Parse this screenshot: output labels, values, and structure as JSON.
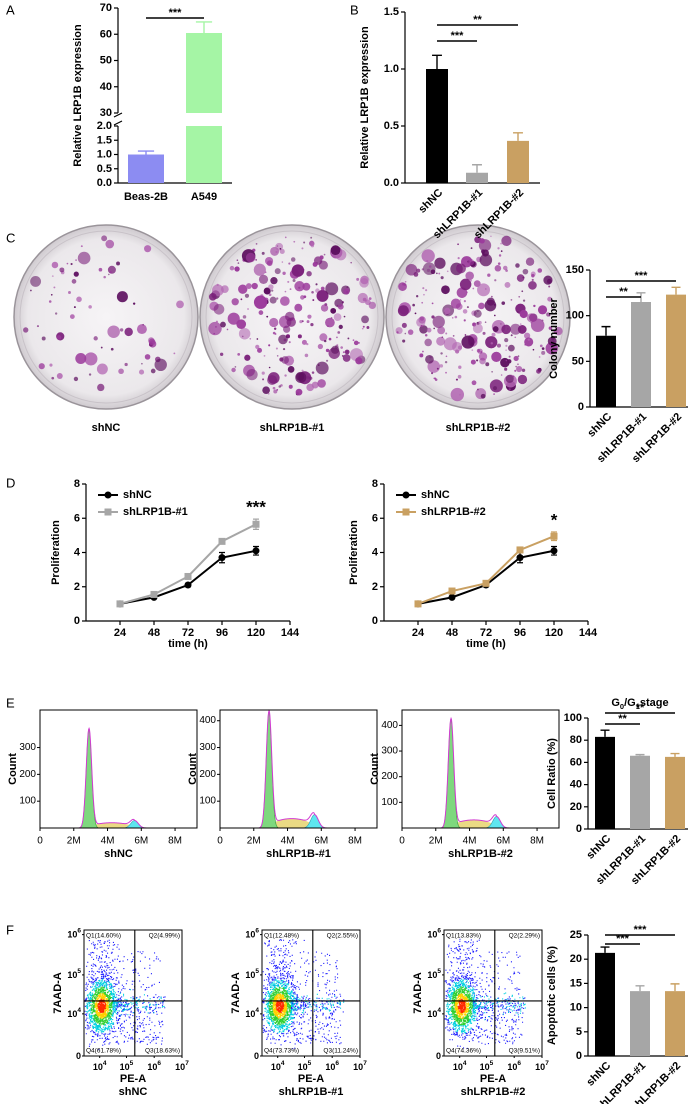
{
  "panels": [
    "A",
    "B",
    "C",
    "D",
    "E",
    "F"
  ],
  "plates": [
    "shNC",
    "shLRP1B-#1",
    "shLRP1B-#2"
  ],
  "chart_data": [
    {
      "type": "bar",
      "ylabel": "Relative LRP1B expression",
      "categories": [
        "Beas-2B",
        "A549"
      ],
      "values": [
        1.0,
        60.5
      ],
      "errors": [
        0.12,
        4.2
      ],
      "colors": [
        "#8c8cf2",
        "#a5f5a5"
      ],
      "ylim": [
        0,
        70
      ],
      "ybreak": [
        2,
        30
      ],
      "yticks": [
        {
          "value": 0,
          "label": "0.0"
        },
        0.5,
        {
          "value": 1,
          "label": "1.0"
        },
        1.5,
        {
          "value": 2,
          "label": "2.0"
        },
        30,
        40,
        50,
        60,
        70
      ],
      "significance": [
        {
          "label": "***",
          "between": [
            0,
            1
          ]
        }
      ]
    },
    {
      "type": "bar",
      "ylabel": "Relative LRP1B expression",
      "categories": [
        "shNC",
        "shLRP1B-#1",
        "shLRP1B-#2"
      ],
      "values": [
        1.0,
        0.09,
        0.37
      ],
      "errors": [
        0.12,
        0.07,
        0.07
      ],
      "colors": [
        "#000000",
        "#a6a6a6",
        "#c9a062"
      ],
      "ylim": [
        0,
        1.5
      ],
      "yticks": [
        {
          "value": 0,
          "label": "0.0"
        },
        0.5,
        {
          "value": 1,
          "label": "1.0"
        },
        1.5
      ],
      "significance": [
        {
          "label": "***",
          "between": [
            0,
            1
          ]
        },
        {
          "label": "**",
          "between": [
            0,
            2
          ]
        }
      ]
    },
    {
      "type": "bar",
      "ylabel": "Colony number",
      "categories": [
        "shNC",
        "shLRP1B-#1",
        "shLRP1B-#2"
      ],
      "values": [
        78,
        115,
        123
      ],
      "errors": [
        10,
        10,
        8
      ],
      "colors": [
        "#000000",
        "#a6a6a6",
        "#c9a062"
      ],
      "ylim": [
        0,
        150
      ],
      "yticks": [
        0,
        50,
        100,
        150
      ],
      "significance": [
        {
          "label": "**",
          "between": [
            0,
            1
          ]
        },
        {
          "label": "***",
          "between": [
            0,
            2
          ]
        }
      ]
    },
    {
      "type": "line",
      "ylabel": "Proliferation",
      "xlabel": "time (h)",
      "x": [
        24,
        48,
        72,
        96,
        120
      ],
      "xlim": [
        0,
        144
      ],
      "xticks": [
        24,
        48,
        72,
        96,
        120,
        144
      ],
      "ylim": [
        0,
        8
      ],
      "yticks": [
        0,
        2,
        4,
        6,
        8
      ],
      "series": [
        {
          "name": "shNC",
          "color": "#000000",
          "marker": "circle",
          "values": [
            1.0,
            1.38,
            2.1,
            3.7,
            4.1
          ],
          "errors": [
            0.05,
            0.06,
            0.1,
            0.3,
            0.25
          ]
        },
        {
          "name": "shLRP1B-#1",
          "color": "#a6a6a6",
          "marker": "square",
          "values": [
            1.0,
            1.55,
            2.6,
            4.65,
            5.65
          ],
          "errors": [
            0.05,
            0.06,
            0.1,
            0.15,
            0.3
          ]
        }
      ],
      "annotation": {
        "label": "***",
        "x": 120
      }
    },
    {
      "type": "line",
      "ylabel": "Proliferation",
      "xlabel": "time (h)",
      "x": [
        24,
        48,
        72,
        96,
        120
      ],
      "xlim": [
        0,
        144
      ],
      "xticks": [
        24,
        48,
        72,
        96,
        120,
        144
      ],
      "ylim": [
        0,
        8
      ],
      "yticks": [
        0,
        2,
        4,
        6,
        8
      ],
      "series": [
        {
          "name": "shNC",
          "color": "#000000",
          "marker": "circle",
          "values": [
            1.0,
            1.38,
            2.1,
            3.7,
            4.1
          ],
          "errors": [
            0.05,
            0.06,
            0.1,
            0.3,
            0.25
          ]
        },
        {
          "name": "shLRP1B-#2",
          "color": "#c9a062",
          "marker": "square",
          "values": [
            1.0,
            1.75,
            2.2,
            4.15,
            4.95
          ],
          "errors": [
            0.05,
            0.08,
            0.1,
            0.12,
            0.25
          ]
        }
      ],
      "annotation": {
        "label": "*",
        "x": 120
      }
    },
    {
      "type": "flow-histogram",
      "ylabel": "Count",
      "xlabel": "shNC",
      "xlim": [
        0,
        9300000
      ],
      "xticks": [
        0,
        {
          "value": 2000000,
          "label": "2M"
        },
        {
          "value": 4000000,
          "label": "4M"
        },
        {
          "value": 6000000,
          "label": "6M"
        },
        {
          "value": 8000000,
          "label": "8M"
        }
      ],
      "ylim": [
        0,
        440
      ],
      "yticks": [
        100,
        200,
        300
      ],
      "peaks": [
        [
          2900000,
          370
        ],
        [
          5600000,
          28
        ]
      ],
      "colors": [
        "#7ed87e",
        "#e6d36e",
        "#5ee6ef"
      ],
      "line_color": "#d23cd2"
    },
    {
      "type": "flow-histogram",
      "ylabel": "Count",
      "xlabel": "shLRP1B-#1",
      "xlim": [
        0,
        9300000
      ],
      "xticks": [
        0,
        {
          "value": 2000000,
          "label": "2M"
        },
        {
          "value": 4000000,
          "label": "4M"
        },
        {
          "value": 6000000,
          "label": "6M"
        },
        {
          "value": 8000000,
          "label": "8M"
        }
      ],
      "ylim": [
        0,
        440
      ],
      "yticks": [
        100,
        200,
        300,
        400
      ],
      "peaks": [
        [
          2900000,
          435
        ],
        [
          5600000,
          50
        ]
      ],
      "colors": [
        "#7ed87e",
        "#e6d36e",
        "#5ee6ef"
      ],
      "line_color": "#d23cd2"
    },
    {
      "type": "flow-histogram",
      "ylabel": "Count",
      "xlabel": "shLRP1B-#2",
      "xlim": [
        0,
        9300000
      ],
      "xticks": [
        0,
        {
          "value": 2000000,
          "label": "2M"
        },
        {
          "value": 4000000,
          "label": "4M"
        },
        {
          "value": 6000000,
          "label": "6M"
        },
        {
          "value": 8000000,
          "label": "8M"
        }
      ],
      "ylim": [
        0,
        460
      ],
      "yticks": [
        100,
        200,
        300,
        400
      ],
      "peaks": [
        [
          2900000,
          425
        ],
        [
          5600000,
          45
        ]
      ],
      "colors": [
        "#7ed87e",
        "#e6d36e",
        "#5ee6ef"
      ],
      "line_color": "#d23cd2"
    },
    {
      "type": "bar",
      "title": [
        "G",
        "0",
        "/G",
        "1",
        "stage"
      ],
      "title_sub": [
        false,
        true,
        false,
        true,
        false
      ],
      "ylabel": "Cell Ratio (%)",
      "categories": [
        "shNC",
        "shLRP1B-#1",
        "shLRP1B-#2"
      ],
      "values": [
        83,
        66,
        65
      ],
      "errors": [
        6,
        1,
        3
      ],
      "colors": [
        "#000000",
        "#a6a6a6",
        "#c9a062"
      ],
      "ylim": [
        0,
        100
      ],
      "yticks": [
        0,
        20,
        40,
        60,
        80,
        100
      ],
      "significance": [
        {
          "label": "**",
          "between": [
            0,
            1
          ]
        },
        {
          "label": "**",
          "between": [
            0,
            2
          ]
        }
      ]
    },
    {
      "type": "flow-dot",
      "xlabel": "PE-A",
      "ylabel": "7AAD-A",
      "sample": "shNC",
      "xscale": "symlog",
      "yscale": "symlog",
      "linthresh": 1000,
      "xlim": [
        2000,
        10000000
      ],
      "ylim": [
        0,
        1300000
      ],
      "xticks": [
        {
          "value": 10000,
          "label": "10",
          "sup": "4"
        },
        {
          "value": 100000,
          "label": "10",
          "sup": "5"
        },
        {
          "value": 1000000,
          "label": "10",
          "sup": "6"
        },
        {
          "value": 10000000,
          "label": "10",
          "sup": "7"
        }
      ],
      "yticks": [
        0,
        {
          "value": 10000,
          "label": "10",
          "sup": "4"
        },
        {
          "value": 100000,
          "label": "10",
          "sup": "5"
        },
        {
          "value": 1000000,
          "label": "10",
          "sup": "6"
        }
      ],
      "gate": [
        200000,
        22000
      ],
      "quadrants": [
        "Q1(14.60%)",
        "Q2(4.99%)",
        "Q3(18.63%)",
        "Q4(61.78%)"
      ]
    },
    {
      "type": "flow-dot",
      "xlabel": "PE-A",
      "ylabel": "7AAD-A",
      "sample": "shLRP1B-#1",
      "xscale": "symlog",
      "yscale": "symlog",
      "linthresh": 1000,
      "xlim": [
        2000,
        10000000
      ],
      "ylim": [
        0,
        1300000
      ],
      "xticks": [
        {
          "value": 10000,
          "label": "10",
          "sup": "4"
        },
        {
          "value": 100000,
          "label": "10",
          "sup": "5"
        },
        {
          "value": 1000000,
          "label": "10",
          "sup": "6"
        },
        {
          "value": 10000000,
          "label": "10",
          "sup": "7"
        }
      ],
      "yticks": [
        0,
        {
          "value": 10000,
          "label": "10",
          "sup": "4"
        },
        {
          "value": 100000,
          "label": "10",
          "sup": "5"
        },
        {
          "value": 1000000,
          "label": "10",
          "sup": "6"
        }
      ],
      "gate": [
        200000,
        22000
      ],
      "quadrants": [
        "Q1(12.48%)",
        "Q2(2.55%)",
        "Q3(11.24%)",
        "Q4(73.73%)"
      ]
    },
    {
      "type": "flow-dot",
      "xlabel": "PE-A",
      "ylabel": "7AAD-A",
      "sample": "shLRP1B-#2",
      "xscale": "symlog",
      "yscale": "symlog",
      "linthresh": 1000,
      "xlim": [
        2000,
        10000000
      ],
      "ylim": [
        0,
        1300000
      ],
      "xticks": [
        {
          "value": 10000,
          "label": "10",
          "sup": "4"
        },
        {
          "value": 100000,
          "label": "10",
          "sup": "5"
        },
        {
          "value": 1000000,
          "label": "10",
          "sup": "6"
        },
        {
          "value": 10000000,
          "label": "10",
          "sup": "7"
        }
      ],
      "yticks": [
        0,
        {
          "value": 10000,
          "label": "10",
          "sup": "4"
        },
        {
          "value": 100000,
          "label": "10",
          "sup": "5"
        },
        {
          "value": 1000000,
          "label": "10",
          "sup": "6"
        }
      ],
      "gate": [
        200000,
        22000
      ],
      "quadrants": [
        "Q1(13.83%)",
        "Q2(2.29%)",
        "Q3(9.51%)",
        "Q4(74.36%)"
      ]
    },
    {
      "type": "bar",
      "ylabel": "Apoptotic cells (%)",
      "categories": [
        "shNC",
        "shLRP1B-#1",
        "shLRP1B-#2"
      ],
      "values": [
        21.3,
        13.4,
        13.4
      ],
      "errors": [
        1.2,
        1.1,
        1.5
      ],
      "colors": [
        "#000000",
        "#a6a6a6",
        "#c9a062"
      ],
      "ylim": [
        0,
        25
      ],
      "yticks": [
        0,
        5,
        10,
        15,
        20,
        25
      ],
      "significance": [
        {
          "label": "***",
          "between": [
            0,
            1
          ]
        },
        {
          "label": "***",
          "between": [
            0,
            2
          ]
        }
      ]
    }
  ]
}
